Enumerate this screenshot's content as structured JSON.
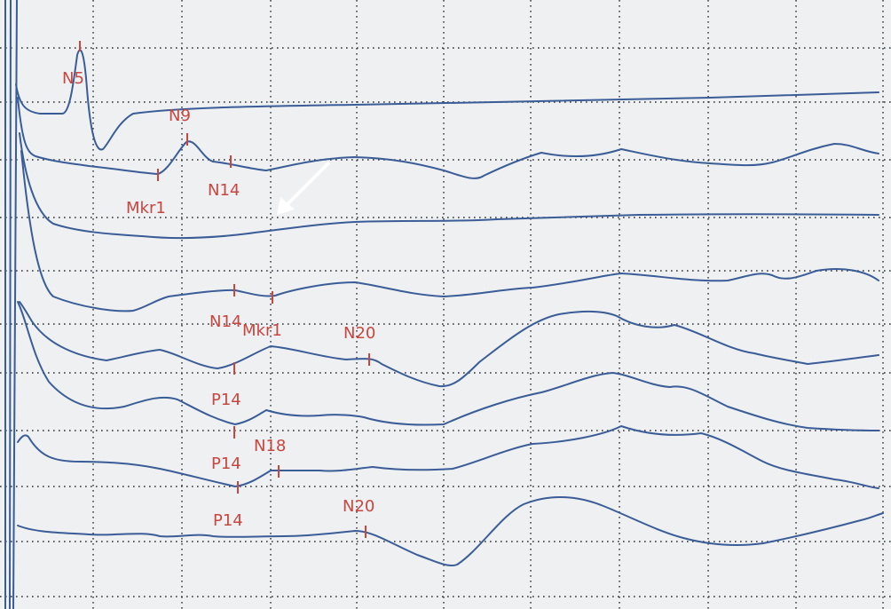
{
  "figure": {
    "trace_color": "#3a5d97",
    "label_color": "#c8463f",
    "arrow_color": "#ffffff",
    "grid_color": "#2c2f33",
    "background": "#eef0f2",
    "channels": [
      {
        "id": "ch1",
        "markers": [
          {
            "text": "N5"
          }
        ]
      },
      {
        "id": "ch2",
        "markers": [
          {
            "text": "N9"
          },
          {
            "text": "Mkr1"
          },
          {
            "text": "N14"
          }
        ]
      },
      {
        "id": "ch3",
        "markers": []
      },
      {
        "id": "ch4",
        "markers": [
          {
            "text": "N14"
          },
          {
            "text": "Mkr1"
          }
        ]
      },
      {
        "id": "ch5",
        "markers": [
          {
            "text": "P14"
          },
          {
            "text": "N20"
          }
        ]
      },
      {
        "id": "ch6",
        "markers": [
          {
            "text": "P14"
          },
          {
            "text": "N18"
          }
        ]
      },
      {
        "id": "ch7",
        "markers": [
          {
            "text": "P14"
          }
        ]
      },
      {
        "id": "ch8",
        "markers": [
          {
            "text": "N20"
          }
        ]
      }
    ]
  }
}
